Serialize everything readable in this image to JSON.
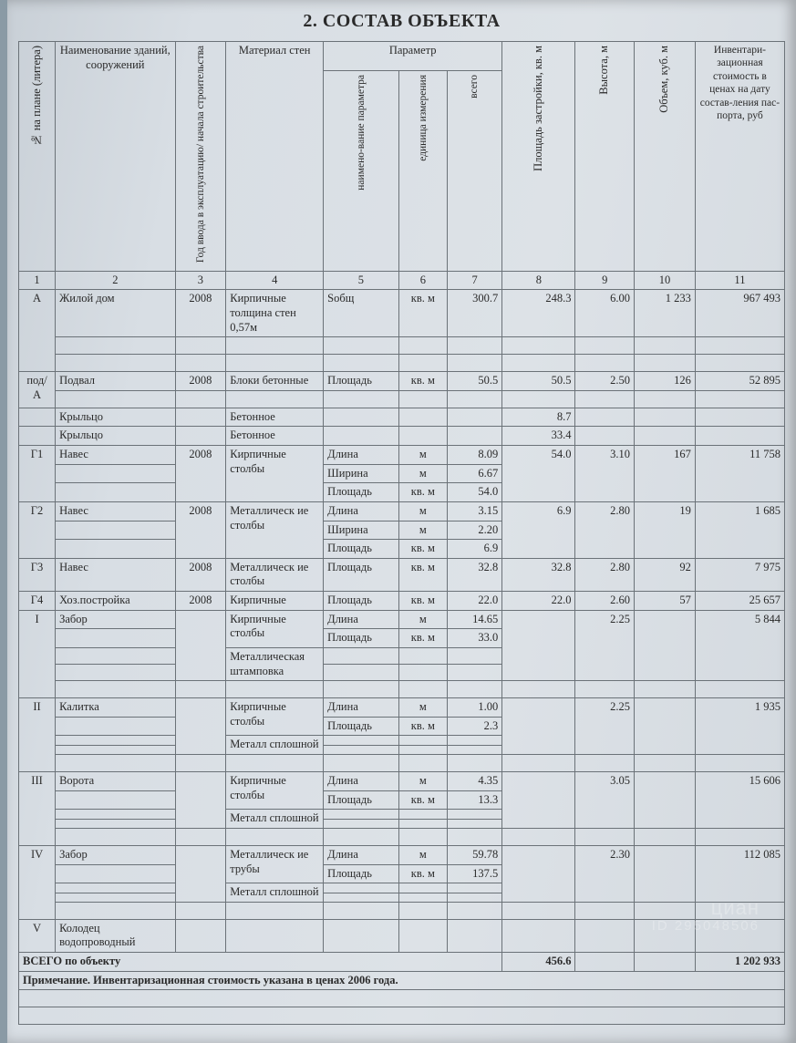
{
  "title": "2. СОСТАВ ОБЪЕКТА",
  "headers": {
    "c1": "№ на плане (литера)",
    "c2": "Наименование зданий, сооружений",
    "c3": "Год ввода в эксплуатацию/ начала строительства",
    "c4": "Материал стен",
    "paramGroup": "Параметр",
    "c5": "наимено-вание параметра",
    "c6": "единица измерения",
    "c7": "всего",
    "c8": "Площадь застройки, кв. м",
    "c9": "Высота, м",
    "c10": "Объем, куб. м",
    "c11": "Инвентари-зационная стоимость в ценах на дату состав-ления пас-порта, руб"
  },
  "colnums": [
    "1",
    "2",
    "3",
    "4",
    "5",
    "6",
    "7",
    "8",
    "9",
    "10",
    "11"
  ],
  "rows": [
    {
      "lit": "А",
      "name": "Жилой дом",
      "year": "2008",
      "mat": "Кирпичные толщина стен 0,57м",
      "pnm": "Sобщ",
      "pu": "кв. м",
      "val": "300.7",
      "area": "248.3",
      "h": "6.00",
      "vol": "1 233",
      "cost": "967 493",
      "blanks": 2
    },
    {
      "lit": "под/А",
      "name": "Подвал",
      "year": "2008",
      "mat": "Блоки бетонные",
      "pnm": "Площадь",
      "pu": "кв. м",
      "val": "50.5",
      "area": "50.5",
      "h": "2.50",
      "vol": "126",
      "cost": "52 895",
      "blanks": 1
    },
    {
      "lit": "",
      "name": "Крыльцо",
      "year": "",
      "mat": "Бетонное",
      "pnm": "",
      "pu": "",
      "val": "",
      "area": "8.7",
      "h": "",
      "vol": "",
      "cost": "",
      "blanks": 0
    },
    {
      "lit": "",
      "name": "Крыльцо",
      "year": "",
      "mat": "Бетонное",
      "pnm": "",
      "pu": "",
      "val": "",
      "area": "33.4",
      "h": "",
      "vol": "",
      "cost": "",
      "blanks": 0
    },
    {
      "lit": "Г1",
      "name": "Навес",
      "year": "2008",
      "mat": "Кирпичные столбы",
      "pnm": "Длина",
      "pu": "м",
      "val": "8.09",
      "area": "54.0",
      "h": "3.10",
      "vol": "167",
      "cost": "11 758",
      "extra": [
        {
          "pnm": "Ширина",
          "pu": "м",
          "val": "6.67"
        },
        {
          "pnm": "Площадь",
          "pu": "кв. м",
          "val": "54.0"
        }
      ],
      "blanks": 0,
      "rowspan": 3
    },
    {
      "lit": "Г2",
      "name": "Навес",
      "year": "2008",
      "mat": "Металлическ ие столбы",
      "pnm": "Длина",
      "pu": "м",
      "val": "3.15",
      "area": "6.9",
      "h": "2.80",
      "vol": "19",
      "cost": "1 685",
      "extra": [
        {
          "pnm": "Ширина",
          "pu": "м",
          "val": "2.20"
        },
        {
          "pnm": "Площадь",
          "pu": "кв. м",
          "val": "6.9"
        }
      ],
      "blanks": 0,
      "rowspan": 3
    },
    {
      "lit": "Г3",
      "name": "Навес",
      "year": "2008",
      "mat": "Металлическ ие столбы",
      "pnm": "Площадь",
      "pu": "кв. м",
      "val": "32.8",
      "area": "32.8",
      "h": "2.80",
      "vol": "92",
      "cost": "7 975",
      "blanks": 0
    },
    {
      "lit": "Г4",
      "name": "Хоз.постройка",
      "year": "2008",
      "mat": "Кирпичные",
      "pnm": "Площадь",
      "pu": "кв. м",
      "val": "22.0",
      "area": "22.0",
      "h": "2.60",
      "vol": "57",
      "cost": "25 657",
      "blanks": 0
    },
    {
      "lit": "I",
      "name": "Забор",
      "year": "",
      "mat": "Кирпичные столбы",
      "pnm": "Длина",
      "pu": "м",
      "val": "14.65",
      "area": "",
      "h": "2.25",
      "vol": "",
      "cost": "5 844",
      "extra": [
        {
          "pnm": "Площадь",
          "pu": "кв. м",
          "val": "33.0"
        }
      ],
      "mat2": "Металлическая штамповка",
      "blanks": 1,
      "rowspan": 4
    },
    {
      "lit": "II",
      "name": "Калитка",
      "year": "",
      "mat": "Кирпичные столбы",
      "pnm": "Длина",
      "pu": "м",
      "val": "1.00",
      "area": "",
      "h": "2.25",
      "vol": "",
      "cost": "1 935",
      "extra": [
        {
          "pnm": "Площадь",
          "pu": "кв. м",
          "val": "2.3"
        }
      ],
      "mat2": "Металл сплошной",
      "blanks": 1,
      "rowspan": 4
    },
    {
      "lit": "III",
      "name": "Ворота",
      "year": "",
      "mat": "Кирпичные столбы",
      "pnm": "Длина",
      "pu": "м",
      "val": "4.35",
      "area": "",
      "h": "3.05",
      "vol": "",
      "cost": "15 606",
      "extra": [
        {
          "pnm": "Площадь",
          "pu": "кв. м",
          "val": "13.3"
        }
      ],
      "mat2": "Металл сплошной",
      "blanks": 1,
      "rowspan": 4
    },
    {
      "lit": "IV",
      "name": "Забор",
      "year": "",
      "mat": "Металлическ ие трубы",
      "pnm": "Длина",
      "pu": "м",
      "val": "59.78",
      "area": "",
      "h": "2.30",
      "vol": "",
      "cost": "112 085",
      "extra": [
        {
          "pnm": "Площадь",
          "pu": "кв. м",
          "val": "137.5"
        }
      ],
      "mat2": "Металл сплошной",
      "blanks": 1,
      "rowspan": 4
    },
    {
      "lit": "V",
      "name": "Колодец водопроводный",
      "year": "",
      "mat": "",
      "pnm": "",
      "pu": "",
      "val": "",
      "area": "",
      "h": "",
      "vol": "",
      "cost": "",
      "blanks": 0
    }
  ],
  "totalLabel": "ВСЕГО по объекту",
  "totalArea": "456.6",
  "totalCost": "1 202 933",
  "note": "Примечание. Инвентаризационная стоимость указана в ценах 2006 года.",
  "watermark": {
    "brand": "циан",
    "id": "ID 295048506"
  }
}
